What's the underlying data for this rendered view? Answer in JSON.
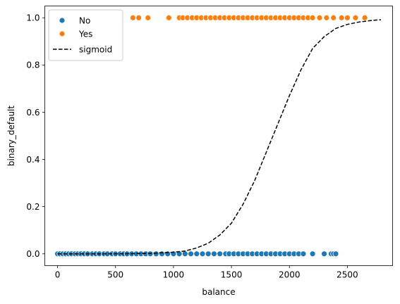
{
  "chart_data": {
    "type": "scatter",
    "xlabel": "balance",
    "ylabel": "binary_default",
    "xlim": [
      -110,
      2890
    ],
    "ylim": [
      -0.05,
      1.05
    ],
    "xticks": [
      0,
      500,
      1000,
      1500,
      2000,
      2500
    ],
    "yticks": [
      0.0,
      0.2,
      0.4,
      0.6,
      0.8,
      1.0
    ],
    "xtick_labels": [
      "0",
      "500",
      "1000",
      "1500",
      "2000",
      "2500"
    ],
    "ytick_labels": [
      "0.0",
      "0.2",
      "0.4",
      "0.6",
      "0.8",
      "1.0"
    ],
    "grid": false,
    "legend_position": "top-left",
    "series": [
      {
        "name": "No",
        "kind": "scatter",
        "color": "#1f77b4",
        "x": [
          0,
          20,
          45,
          70,
          95,
          120,
          150,
          175,
          200,
          230,
          260,
          300,
          330,
          360,
          400,
          430,
          470,
          500,
          540,
          570,
          600,
          640,
          680,
          720,
          760,
          800,
          850,
          900,
          950,
          1000,
          1050,
          1100,
          1150,
          1200,
          1250,
          1300,
          1350,
          1400,
          1450,
          1480,
          1520,
          1560,
          1600,
          1640,
          1680,
          1720,
          1760,
          1800,
          1840,
          1880,
          1920,
          1960,
          2000,
          2040,
          2080,
          2120,
          2200,
          2300,
          2360,
          2380,
          2400
        ],
        "y": [
          0,
          0,
          0,
          0,
          0,
          0,
          0,
          0,
          0,
          0,
          0,
          0,
          0,
          0,
          0,
          0,
          0,
          0,
          0,
          0,
          0,
          0,
          0,
          0,
          0,
          0,
          0,
          0,
          0,
          0,
          0,
          0,
          0,
          0,
          0,
          0,
          0,
          0,
          0,
          0,
          0,
          0,
          0,
          0,
          0,
          0,
          0,
          0,
          0,
          0,
          0,
          0,
          0,
          0,
          0,
          0,
          0,
          0,
          0,
          0,
          0
        ]
      },
      {
        "name": "Yes",
        "kind": "scatter",
        "color": "#ff7f0e",
        "x": [
          650,
          700,
          780,
          960,
          1050,
          1080,
          1120,
          1160,
          1200,
          1240,
          1280,
          1320,
          1360,
          1400,
          1440,
          1480,
          1520,
          1560,
          1600,
          1640,
          1680,
          1720,
          1760,
          1800,
          1840,
          1880,
          1920,
          1960,
          2000,
          2040,
          2080,
          2120,
          2160,
          2200,
          2260,
          2320,
          2380,
          2450,
          2500,
          2570,
          2650
        ],
        "y": [
          1,
          1,
          1,
          1,
          1,
          1,
          1,
          1,
          1,
          1,
          1,
          1,
          1,
          1,
          1,
          1,
          1,
          1,
          1,
          1,
          1,
          1,
          1,
          1,
          1,
          1,
          1,
          1,
          1,
          1,
          1,
          1,
          1,
          1,
          1,
          1,
          1,
          1,
          1,
          1,
          1
        ]
      },
      {
        "name": "sigmoid",
        "kind": "line",
        "style": "dashed",
        "color": "#000000",
        "x": [
          0,
          200,
          400,
          600,
          800,
          1000,
          1100,
          1200,
          1300,
          1400,
          1500,
          1600,
          1700,
          1800,
          1900,
          2000,
          2100,
          2200,
          2300,
          2400,
          2500,
          2600,
          2700,
          2790
        ],
        "y": [
          0.0,
          0.0,
          0.0001,
          0.0005,
          0.002,
          0.007,
          0.012,
          0.025,
          0.045,
          0.08,
          0.13,
          0.21,
          0.31,
          0.43,
          0.55,
          0.67,
          0.78,
          0.87,
          0.92,
          0.955,
          0.972,
          0.982,
          0.988,
          0.992
        ]
      }
    ]
  }
}
